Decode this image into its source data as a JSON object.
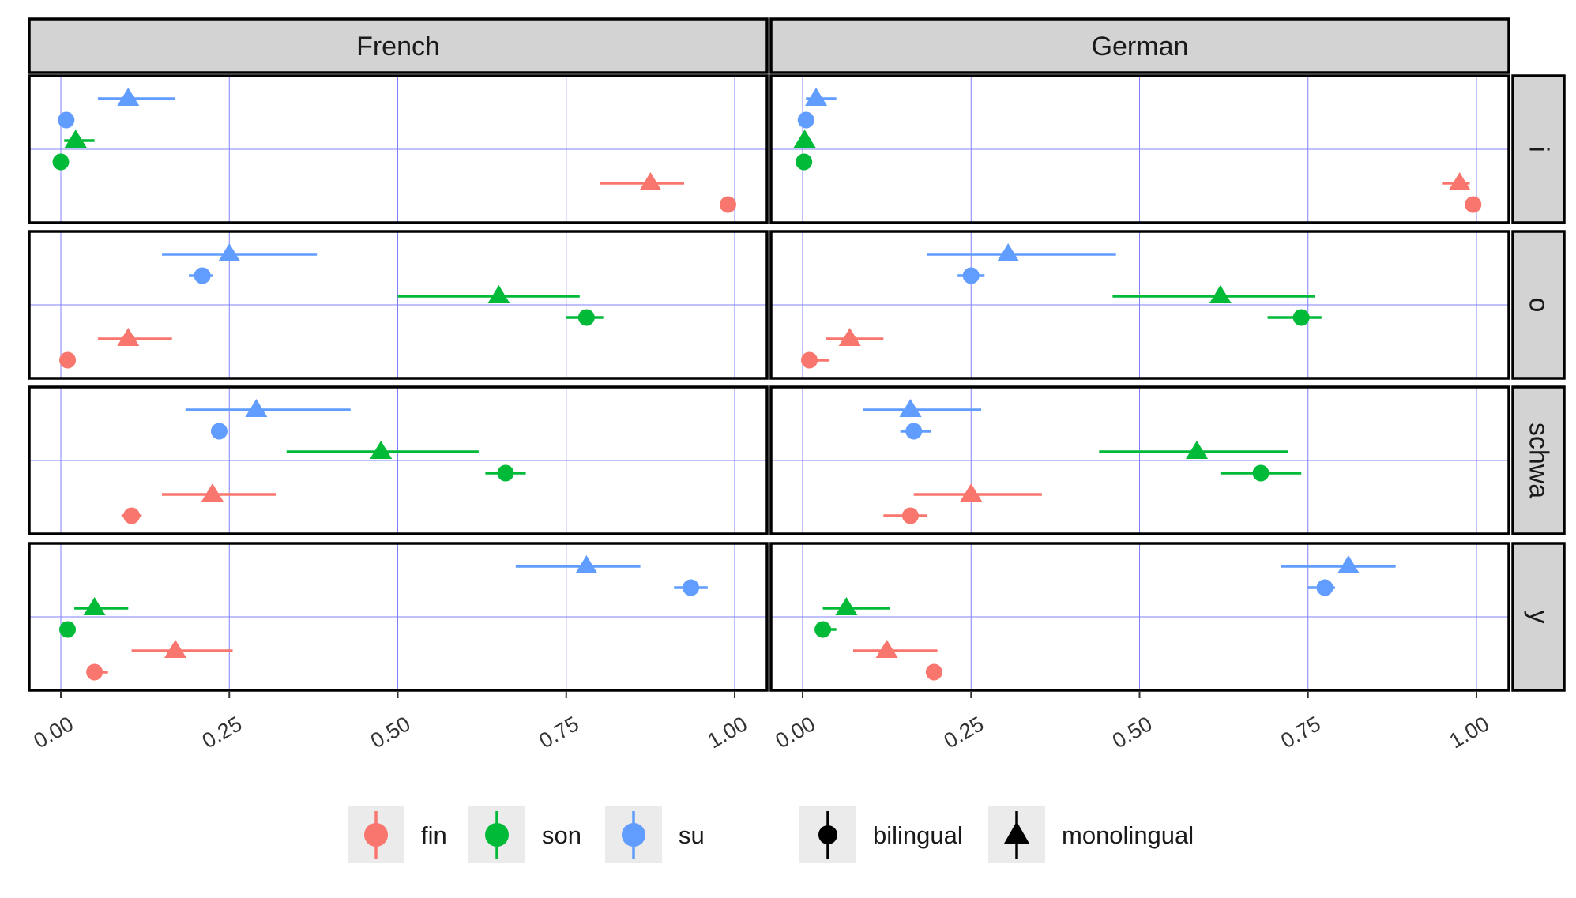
{
  "chart_data": {
    "type": "scatter",
    "xlim": [
      -0.05,
      1.05
    ],
    "x_ticks": [
      0,
      0.25,
      0.5,
      0.75,
      1
    ],
    "x_tick_labels": [
      "0.00",
      "0.25",
      "0.50",
      "0.75",
      "1.00"
    ],
    "grid": true,
    "legend_position": "bottom",
    "columns": [
      "French",
      "German"
    ],
    "rows": [
      "i",
      "o",
      "schwa",
      "y"
    ],
    "legend": {
      "color_entries": [
        "fin",
        "son",
        "su"
      ],
      "shape_entries": [
        "bilingual",
        "monolingual"
      ]
    },
    "colors": {
      "fin": "#F8766D",
      "son": "#00BA38",
      "su": "#619CFF",
      "shape_key": "#000000"
    },
    "series": [
      {
        "column": "French",
        "row": "i",
        "group": "su",
        "type": "monolingual",
        "x": 0.1,
        "low": 0.055,
        "high": 0.17
      },
      {
        "column": "French",
        "row": "i",
        "group": "su",
        "type": "bilingual",
        "x": 0.008,
        "low": 0.0,
        "high": 0.015
      },
      {
        "column": "French",
        "row": "i",
        "group": "son",
        "type": "monolingual",
        "x": 0.022,
        "low": 0.005,
        "high": 0.05
      },
      {
        "column": "French",
        "row": "i",
        "group": "son",
        "type": "bilingual",
        "x": 0.0,
        "low": 0.0,
        "high": 0.005
      },
      {
        "column": "French",
        "row": "i",
        "group": "fin",
        "type": "monolingual",
        "x": 0.875,
        "low": 0.8,
        "high": 0.925
      },
      {
        "column": "French",
        "row": "i",
        "group": "fin",
        "type": "bilingual",
        "x": 0.99,
        "low": 0.985,
        "high": 0.995
      },
      {
        "column": "French",
        "row": "o",
        "group": "su",
        "type": "monolingual",
        "x": 0.25,
        "low": 0.15,
        "high": 0.38
      },
      {
        "column": "French",
        "row": "o",
        "group": "su",
        "type": "bilingual",
        "x": 0.21,
        "low": 0.19,
        "high": 0.225
      },
      {
        "column": "French",
        "row": "o",
        "group": "son",
        "type": "monolingual",
        "x": 0.65,
        "low": 0.5,
        "high": 0.77
      },
      {
        "column": "French",
        "row": "o",
        "group": "son",
        "type": "bilingual",
        "x": 0.78,
        "low": 0.75,
        "high": 0.805
      },
      {
        "column": "French",
        "row": "o",
        "group": "fin",
        "type": "monolingual",
        "x": 0.1,
        "low": 0.055,
        "high": 0.165
      },
      {
        "column": "French",
        "row": "o",
        "group": "fin",
        "type": "bilingual",
        "x": 0.01,
        "low": 0.005,
        "high": 0.02
      },
      {
        "column": "French",
        "row": "schwa",
        "group": "su",
        "type": "monolingual",
        "x": 0.29,
        "low": 0.185,
        "high": 0.43
      },
      {
        "column": "French",
        "row": "schwa",
        "group": "su",
        "type": "bilingual",
        "x": 0.235,
        "low": 0.225,
        "high": 0.245
      },
      {
        "column": "French",
        "row": "schwa",
        "group": "son",
        "type": "monolingual",
        "x": 0.475,
        "low": 0.335,
        "high": 0.62
      },
      {
        "column": "French",
        "row": "schwa",
        "group": "son",
        "type": "bilingual",
        "x": 0.66,
        "low": 0.63,
        "high": 0.69
      },
      {
        "column": "French",
        "row": "schwa",
        "group": "fin",
        "type": "monolingual",
        "x": 0.225,
        "low": 0.15,
        "high": 0.32
      },
      {
        "column": "French",
        "row": "schwa",
        "group": "fin",
        "type": "bilingual",
        "x": 0.105,
        "low": 0.09,
        "high": 0.12
      },
      {
        "column": "French",
        "row": "y",
        "group": "su",
        "type": "monolingual",
        "x": 0.78,
        "low": 0.675,
        "high": 0.86
      },
      {
        "column": "French",
        "row": "y",
        "group": "su",
        "type": "bilingual",
        "x": 0.935,
        "low": 0.91,
        "high": 0.96
      },
      {
        "column": "French",
        "row": "y",
        "group": "son",
        "type": "monolingual",
        "x": 0.05,
        "low": 0.02,
        "high": 0.1
      },
      {
        "column": "French",
        "row": "y",
        "group": "son",
        "type": "bilingual",
        "x": 0.01,
        "low": 0.005,
        "high": 0.02
      },
      {
        "column": "French",
        "row": "y",
        "group": "fin",
        "type": "monolingual",
        "x": 0.17,
        "low": 0.105,
        "high": 0.255
      },
      {
        "column": "French",
        "row": "y",
        "group": "fin",
        "type": "bilingual",
        "x": 0.05,
        "low": 0.04,
        "high": 0.07
      },
      {
        "column": "German",
        "row": "i",
        "group": "su",
        "type": "monolingual",
        "x": 0.02,
        "low": 0.005,
        "high": 0.05
      },
      {
        "column": "German",
        "row": "i",
        "group": "su",
        "type": "bilingual",
        "x": 0.005,
        "low": 0.0,
        "high": 0.012
      },
      {
        "column": "German",
        "row": "i",
        "group": "son",
        "type": "monolingual",
        "x": 0.003,
        "low": 0.0,
        "high": 0.01
      },
      {
        "column": "German",
        "row": "i",
        "group": "son",
        "type": "bilingual",
        "x": 0.002,
        "low": 0.0,
        "high": 0.006
      },
      {
        "column": "German",
        "row": "i",
        "group": "fin",
        "type": "monolingual",
        "x": 0.975,
        "low": 0.95,
        "high": 0.99
      },
      {
        "column": "German",
        "row": "i",
        "group": "fin",
        "type": "bilingual",
        "x": 0.995,
        "low": 0.99,
        "high": 1.0
      },
      {
        "column": "German",
        "row": "o",
        "group": "su",
        "type": "monolingual",
        "x": 0.305,
        "low": 0.185,
        "high": 0.465
      },
      {
        "column": "German",
        "row": "o",
        "group": "su",
        "type": "bilingual",
        "x": 0.25,
        "low": 0.23,
        "high": 0.27
      },
      {
        "column": "German",
        "row": "o",
        "group": "son",
        "type": "monolingual",
        "x": 0.62,
        "low": 0.46,
        "high": 0.76
      },
      {
        "column": "German",
        "row": "o",
        "group": "son",
        "type": "bilingual",
        "x": 0.74,
        "low": 0.69,
        "high": 0.77
      },
      {
        "column": "German",
        "row": "o",
        "group": "fin",
        "type": "monolingual",
        "x": 0.07,
        "low": 0.035,
        "high": 0.12
      },
      {
        "column": "German",
        "row": "o",
        "group": "fin",
        "type": "bilingual",
        "x": 0.01,
        "low": 0.005,
        "high": 0.04
      },
      {
        "column": "German",
        "row": "schwa",
        "group": "su",
        "type": "monolingual",
        "x": 0.16,
        "low": 0.09,
        "high": 0.265
      },
      {
        "column": "German",
        "row": "schwa",
        "group": "su",
        "type": "bilingual",
        "x": 0.165,
        "low": 0.145,
        "high": 0.19
      },
      {
        "column": "German",
        "row": "schwa",
        "group": "son",
        "type": "monolingual",
        "x": 0.585,
        "low": 0.44,
        "high": 0.72
      },
      {
        "column": "German",
        "row": "schwa",
        "group": "son",
        "type": "bilingual",
        "x": 0.68,
        "low": 0.62,
        "high": 0.74
      },
      {
        "column": "German",
        "row": "schwa",
        "group": "fin",
        "type": "monolingual",
        "x": 0.25,
        "low": 0.165,
        "high": 0.355
      },
      {
        "column": "German",
        "row": "schwa",
        "group": "fin",
        "type": "bilingual",
        "x": 0.16,
        "low": 0.12,
        "high": 0.185
      },
      {
        "column": "German",
        "row": "y",
        "group": "su",
        "type": "monolingual",
        "x": 0.81,
        "low": 0.71,
        "high": 0.88
      },
      {
        "column": "German",
        "row": "y",
        "group": "su",
        "type": "bilingual",
        "x": 0.775,
        "low": 0.75,
        "high": 0.79
      },
      {
        "column": "German",
        "row": "y",
        "group": "son",
        "type": "monolingual",
        "x": 0.065,
        "low": 0.03,
        "high": 0.13
      },
      {
        "column": "German",
        "row": "y",
        "group": "son",
        "type": "bilingual",
        "x": 0.03,
        "low": 0.02,
        "high": 0.05
      },
      {
        "column": "German",
        "row": "y",
        "group": "fin",
        "type": "monolingual",
        "x": 0.125,
        "low": 0.075,
        "high": 0.2
      },
      {
        "column": "German",
        "row": "y",
        "group": "fin",
        "type": "bilingual",
        "x": 0.195,
        "low": 0.19,
        "high": 0.2
      }
    ]
  }
}
